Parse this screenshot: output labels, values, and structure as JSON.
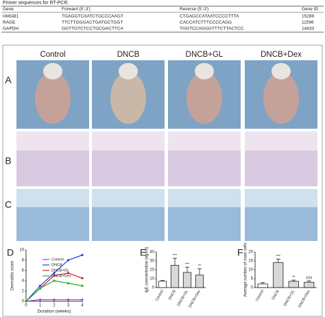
{
  "table": {
    "caption": "Primer sequences for RT-PCR.",
    "headers": [
      "Gene",
      "Forward (5'-3')",
      "Reverse (5'-3')",
      "Gene ID"
    ],
    "rows": [
      [
        "HMGB1",
        "TGAGGTCAATCTGCCCAAGT",
        "CTGAGCCATAATCCCCTTTA",
        "15289"
      ],
      [
        "RAGE",
        "TTCTTGGGACTGATGCTGGT",
        "CACCATCTTTCCCCAGG",
        "11596"
      ],
      [
        "GAPDH",
        "GGTTGTCTCCTGCGACTTCA",
        "TGGTCCAGGGTTTCTTACTCC",
        "14433"
      ]
    ]
  },
  "figure": {
    "columns": [
      "Control",
      "DNCB",
      "DNCB+GL",
      "DNCB+Dex"
    ],
    "row_labels": [
      "A",
      "B",
      "C"
    ]
  },
  "chart_data": [
    {
      "type": "line",
      "panel": "D",
      "xlabel": "Duration (weeks)",
      "ylabel": "Dermatitis score",
      "x": [
        0,
        1,
        2,
        3,
        4
      ],
      "xlim": [
        0,
        4
      ],
      "xticks": [
        0,
        1,
        2,
        3,
        4
      ],
      "ylim": [
        0,
        10
      ],
      "yticks": [
        0,
        2,
        4,
        6,
        8,
        10
      ],
      "series": [
        {
          "name": "Control",
          "color": "#a040e0",
          "values": [
            0,
            0.3,
            0.3,
            0.3,
            0.3
          ]
        },
        {
          "name": "DNCB",
          "color": "#2040e0",
          "values": [
            0,
            3,
            5.5,
            8,
            9
          ]
        },
        {
          "name": "DNCB+GL",
          "color": "#e02020",
          "values": [
            0,
            2.5,
            5,
            5.5,
            4.5
          ]
        },
        {
          "name": "DNCB+Dex",
          "color": "#20b020",
          "values": [
            0,
            2.5,
            4,
            3.5,
            3
          ]
        }
      ]
    },
    {
      "type": "bar",
      "panel": "E",
      "ylabel": "IgE concentration (ng/ml)",
      "categories": [
        "Control",
        "DNCB",
        "DNCB+GL",
        "DNCB+Dex"
      ],
      "values": [
        7,
        25,
        17,
        14
      ],
      "errors": [
        1,
        8,
        6,
        7
      ],
      "sig": [
        null,
        "***",
        "***",
        "**"
      ],
      "ylim": [
        0,
        40
      ],
      "yticks": [
        0,
        10,
        20,
        30,
        40
      ],
      "color": "#d8d8d8"
    },
    {
      "type": "bar",
      "panel": "F",
      "ylabel": "Average number of mast cells",
      "categories": [
        "Control",
        "DNCB",
        "DNCB+GL",
        "DNCB+Dex"
      ],
      "values": [
        2,
        14,
        3.5,
        3
      ],
      "errors": [
        0.8,
        2,
        0.7,
        0.8
      ],
      "sig": [
        null,
        "***",
        "**",
        "###"
      ],
      "ylim": [
        0,
        20
      ],
      "yticks": [
        0,
        5,
        10,
        15,
        20
      ],
      "color": "#d8d8d8"
    }
  ]
}
